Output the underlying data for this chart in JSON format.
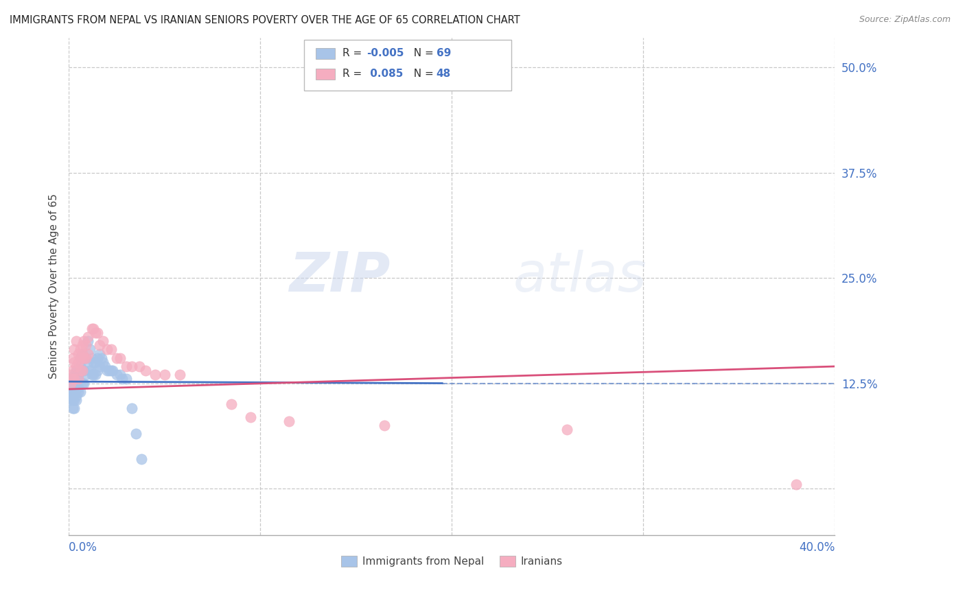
{
  "title": "IMMIGRANTS FROM NEPAL VS IRANIAN SENIORS POVERTY OVER THE AGE OF 65 CORRELATION CHART",
  "source": "Source: ZipAtlas.com",
  "ylabel": "Seniors Poverty Over the Age of 65",
  "xlim": [
    0.0,
    0.4
  ],
  "ylim": [
    -0.055,
    0.535
  ],
  "legend_nepal_R": "-0.005",
  "legend_nepal_N": "69",
  "legend_iran_R": "0.085",
  "legend_iran_N": "48",
  "nepal_color": "#a8c4e8",
  "iran_color": "#f5adc0",
  "nepal_trend_color": "#4472c4",
  "iran_trend_color": "#d94f7a",
  "grid_color": "#c8c8c8",
  "title_color": "#222222",
  "axis_label_color": "#4472c4",
  "watermark_zip": "ZIP",
  "watermark_atlas": "atlas",
  "nepal_x": [
    0.001,
    0.001,
    0.001,
    0.001,
    0.001,
    0.002,
    0.002,
    0.002,
    0.002,
    0.002,
    0.002,
    0.002,
    0.003,
    0.003,
    0.003,
    0.003,
    0.003,
    0.003,
    0.003,
    0.004,
    0.004,
    0.004,
    0.004,
    0.004,
    0.004,
    0.005,
    0.005,
    0.005,
    0.005,
    0.005,
    0.006,
    0.006,
    0.006,
    0.007,
    0.007,
    0.007,
    0.008,
    0.008,
    0.008,
    0.009,
    0.009,
    0.01,
    0.01,
    0.011,
    0.011,
    0.012,
    0.012,
    0.013,
    0.013,
    0.014,
    0.014,
    0.015,
    0.015,
    0.016,
    0.016,
    0.017,
    0.018,
    0.019,
    0.02,
    0.021,
    0.022,
    0.023,
    0.025,
    0.027,
    0.028,
    0.03,
    0.033,
    0.035,
    0.038
  ],
  "nepal_y": [
    0.125,
    0.12,
    0.115,
    0.11,
    0.105,
    0.13,
    0.125,
    0.12,
    0.115,
    0.11,
    0.105,
    0.095,
    0.135,
    0.13,
    0.125,
    0.12,
    0.115,
    0.105,
    0.095,
    0.14,
    0.135,
    0.13,
    0.12,
    0.11,
    0.105,
    0.14,
    0.135,
    0.13,
    0.12,
    0.115,
    0.155,
    0.145,
    0.115,
    0.16,
    0.14,
    0.125,
    0.155,
    0.14,
    0.125,
    0.155,
    0.135,
    0.175,
    0.145,
    0.165,
    0.14,
    0.155,
    0.135,
    0.15,
    0.135,
    0.15,
    0.135,
    0.155,
    0.14,
    0.16,
    0.145,
    0.155,
    0.15,
    0.145,
    0.14,
    0.14,
    0.14,
    0.14,
    0.135,
    0.135,
    0.13,
    0.13,
    0.095,
    0.065,
    0.035
  ],
  "iran_x": [
    0.001,
    0.001,
    0.002,
    0.002,
    0.002,
    0.003,
    0.003,
    0.003,
    0.004,
    0.004,
    0.005,
    0.005,
    0.005,
    0.006,
    0.006,
    0.006,
    0.007,
    0.007,
    0.007,
    0.008,
    0.008,
    0.009,
    0.009,
    0.01,
    0.01,
    0.012,
    0.013,
    0.014,
    0.015,
    0.016,
    0.018,
    0.02,
    0.022,
    0.025,
    0.027,
    0.03,
    0.033,
    0.037,
    0.04,
    0.045,
    0.05,
    0.058,
    0.085,
    0.095,
    0.115,
    0.165,
    0.26,
    0.38
  ],
  "iran_y": [
    0.135,
    0.125,
    0.155,
    0.14,
    0.13,
    0.165,
    0.15,
    0.13,
    0.175,
    0.145,
    0.16,
    0.15,
    0.13,
    0.165,
    0.155,
    0.14,
    0.17,
    0.16,
    0.14,
    0.175,
    0.155,
    0.17,
    0.155,
    0.18,
    0.16,
    0.19,
    0.19,
    0.185,
    0.185,
    0.17,
    0.175,
    0.165,
    0.165,
    0.155,
    0.155,
    0.145,
    0.145,
    0.145,
    0.14,
    0.135,
    0.135,
    0.135,
    0.1,
    0.085,
    0.08,
    0.075,
    0.07,
    0.005
  ],
  "nepal_trend_x": [
    0.0,
    0.195
  ],
  "nepal_trend_y": [
    0.127,
    0.125
  ],
  "iran_trend_x": [
    0.0,
    0.4
  ],
  "iran_trend_y": [
    0.118,
    0.145
  ]
}
